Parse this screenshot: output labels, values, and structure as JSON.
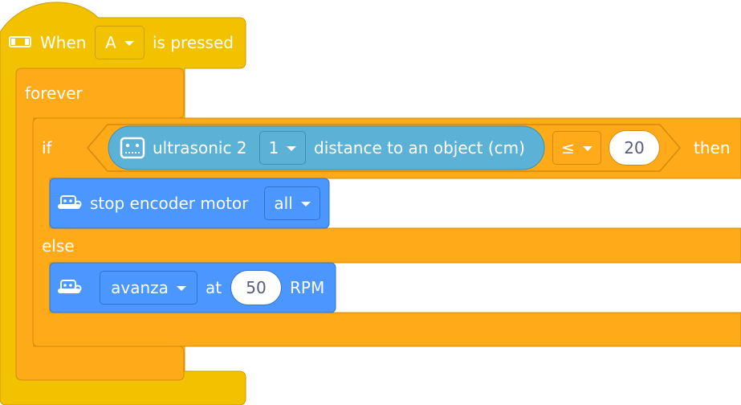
{
  "hat_block": {
    "icon": "hub-button-icon",
    "prefix": "When",
    "button_value": "A",
    "suffix": "is pressed"
  },
  "forever_block": {
    "label": "forever"
  },
  "if_block": {
    "if_label": "if",
    "then_label": "then",
    "else_label": "else",
    "condition": {
      "sensor_icon": "ultrasonic-sensor-icon",
      "sensor_label": "ultrasonic 2",
      "port_value": "1",
      "measure_label": "distance to an object (cm)",
      "operator_value": "≤",
      "threshold_value": "20"
    }
  },
  "stop_block": {
    "icon": "motor-icon",
    "label": "stop encoder motor",
    "motor_value": "all"
  },
  "run_block": {
    "icon": "motor-icon",
    "action_value": "avanza",
    "at_label": "at",
    "speed_value": "50",
    "unit_label": "RPM"
  },
  "colors": {
    "events": "#f2c200",
    "control": "#ffab19",
    "sensing": "#5cb1d6",
    "motion": "#4c97ff"
  }
}
